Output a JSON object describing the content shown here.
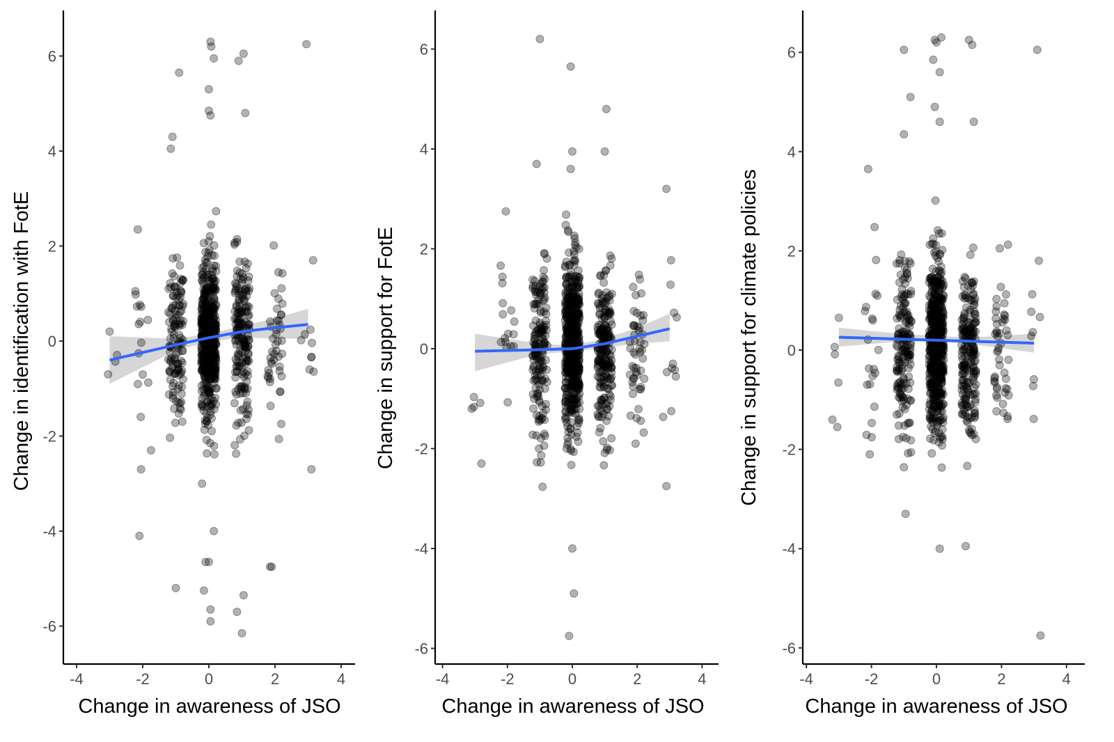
{
  "figure": {
    "point_color": "#000000",
    "point_alpha": 0.3,
    "fit_line_color": "#3366FF",
    "ci_band_color": "#999999",
    "ci_band_alpha": 0.4
  },
  "chart_data": [
    {
      "type": "scatter",
      "title": "",
      "xlabel": "Change in awareness of JSO",
      "ylabel": "Change in identification with FotE",
      "xlim": [
        -4.4,
        4.4
      ],
      "ylim": [
        -6.8,
        6.8
      ],
      "xticks": [
        "-4",
        "-2",
        "0",
        "2",
        "4"
      ],
      "yticks": [
        "-6",
        "-4",
        "-2",
        "0",
        "2",
        "4",
        "6"
      ],
      "grid": false,
      "jitter_columns": [
        {
          "x": -3,
          "n": 2,
          "spread": [
            -0.7,
            0.2
          ]
        },
        {
          "x": -2,
          "n": 14,
          "spread": [
            -4.1,
            2.4
          ]
        },
        {
          "x": -1,
          "n": 130,
          "spread": [
            -5.2,
            5.6
          ]
        },
        {
          "x": 0,
          "n": 520,
          "spread": [
            -5.9,
            6.3
          ]
        },
        {
          "x": 1,
          "n": 190,
          "spread": [
            -6.2,
            6.1
          ]
        },
        {
          "x": 2,
          "n": 45,
          "spread": [
            -4.8,
            3.3
          ]
        },
        {
          "x": 3,
          "n": 8,
          "spread": [
            -2.7,
            6.2
          ]
        }
      ],
      "outliers": [
        {
          "x": 0.05,
          "y": 6.3
        },
        {
          "x": 0.07,
          "y": 6.2
        },
        {
          "x": 0.15,
          "y": 5.95
        },
        {
          "x": -0.9,
          "y": 5.65
        },
        {
          "x": 0.9,
          "y": 5.9
        },
        {
          "x": 1.05,
          "y": 6.05
        },
        {
          "x": 2.95,
          "y": 6.25
        },
        {
          "x": 0.0,
          "y": 5.3
        },
        {
          "x": 0.0,
          "y": 4.85
        },
        {
          "x": 0.05,
          "y": 4.75
        },
        {
          "x": 1.1,
          "y": 4.8
        },
        {
          "x": -1.1,
          "y": 4.3
        },
        {
          "x": -1.15,
          "y": 4.05
        },
        {
          "x": -2.15,
          "y": 2.35
        },
        {
          "x": 3.15,
          "y": 1.7
        },
        {
          "x": -2.1,
          "y": -4.1
        },
        {
          "x": -1.0,
          "y": -5.2
        },
        {
          "x": 1.05,
          "y": -5.35
        },
        {
          "x": 0.05,
          "y": -5.65
        },
        {
          "x": 0.85,
          "y": -5.7
        },
        {
          "x": 0.05,
          "y": -5.9
        },
        {
          "x": 1.0,
          "y": -6.15
        },
        {
          "x": -0.15,
          "y": -5.25
        },
        {
          "x": 1.85,
          "y": -4.75
        },
        {
          "x": 1.9,
          "y": -4.75
        },
        {
          "x": -0.1,
          "y": -4.65
        },
        {
          "x": 0.0,
          "y": -4.65
        },
        {
          "x": 0.15,
          "y": -4.0
        },
        {
          "x": 3.1,
          "y": -2.7
        },
        {
          "x": -3.05,
          "y": -0.7
        },
        {
          "x": -3.0,
          "y": 0.2
        },
        {
          "x": -2.05,
          "y": -2.7
        },
        {
          "x": -1.75,
          "y": -2.3
        }
      ],
      "fit_line": {
        "x": [
          -3,
          -1,
          0,
          1,
          2,
          3
        ],
        "y": [
          -0.4,
          -0.08,
          0.07,
          0.2,
          0.28,
          0.35
        ]
      },
      "ci_band": {
        "x": [
          -3,
          -1,
          0,
          1,
          2,
          3
        ],
        "lower": [
          -0.9,
          -0.2,
          -0.02,
          0.08,
          0.05,
          0.05
        ],
        "upper": [
          0.1,
          0.05,
          0.15,
          0.32,
          0.48,
          0.68
        ]
      }
    },
    {
      "type": "scatter",
      "title": "",
      "xlabel": "Change in awareness of JSO",
      "ylabel": "Change in support for FotE",
      "xlim": [
        -4.4,
        4.4
      ],
      "ylim": [
        -6.5,
        6.8
      ],
      "xticks": [
        "-4",
        "-2",
        "0",
        "2",
        "4"
      ],
      "yticks": [
        "-6",
        "-4",
        "-2",
        "0",
        "2",
        "4",
        "6"
      ],
      "grid": false,
      "jitter_columns": [
        {
          "x": -3,
          "n": 3,
          "spread": [
            -2.3,
            -0.3
          ]
        },
        {
          "x": -2,
          "n": 16,
          "spread": [
            -1.2,
            2.8
          ]
        },
        {
          "x": -1,
          "n": 170,
          "spread": [
            -3.6,
            3.7
          ]
        },
        {
          "x": 0,
          "n": 560,
          "spread": [
            -4.0,
            3.9
          ]
        },
        {
          "x": 1,
          "n": 220,
          "spread": [
            -3.1,
            3.9
          ]
        },
        {
          "x": 2,
          "n": 50,
          "spread": [
            -1.9,
            3.0
          ]
        },
        {
          "x": 3,
          "n": 9,
          "spread": [
            -2.8,
            3.2
          ]
        }
      ],
      "outliers": [
        {
          "x": -1.0,
          "y": 6.2
        },
        {
          "x": -0.05,
          "y": 5.65
        },
        {
          "x": 1.05,
          "y": 4.8
        },
        {
          "x": 0.0,
          "y": 3.95
        },
        {
          "x": 1.0,
          "y": 3.95
        },
        {
          "x": -1.1,
          "y": 3.7
        },
        {
          "x": -0.05,
          "y": 3.6
        },
        {
          "x": 2.9,
          "y": 3.2
        },
        {
          "x": -2.05,
          "y": 2.75
        },
        {
          "x": -3.1,
          "y": -1.2
        },
        {
          "x": -2.8,
          "y": -2.3
        },
        {
          "x": 0.05,
          "y": -4.9
        },
        {
          "x": -0.1,
          "y": -5.75
        },
        {
          "x": 0.0,
          "y": -4.0
        },
        {
          "x": 3.1,
          "y": -0.3
        },
        {
          "x": 3.05,
          "y": -1.25
        },
        {
          "x": 2.9,
          "y": -2.75
        },
        {
          "x": 1.95,
          "y": -1.9
        }
      ],
      "fit_line": {
        "x": [
          -3,
          -1,
          0,
          1,
          2,
          3
        ],
        "y": [
          -0.05,
          -0.02,
          0.0,
          0.1,
          0.25,
          0.4
        ]
      },
      "ci_band": {
        "x": [
          -3,
          -1,
          0,
          1,
          2,
          3
        ],
        "lower": [
          -0.45,
          -0.1,
          -0.06,
          0.02,
          0.1,
          0.15
        ],
        "upper": [
          0.3,
          0.1,
          0.07,
          0.2,
          0.42,
          0.7
        ]
      }
    },
    {
      "type": "scatter",
      "title": "",
      "xlabel": "Change in awareness of JSO",
      "ylabel": "Change in support for climate policies",
      "xlim": [
        -4.4,
        4.4
      ],
      "ylim": [
        -6.5,
        6.8
      ],
      "xticks": [
        "-4",
        "-2",
        "0",
        "2",
        "4"
      ],
      "yticks": [
        "-6",
        "-4",
        "-2",
        "0",
        "2",
        "4",
        "6"
      ],
      "grid": false,
      "jitter_columns": [
        {
          "x": -3,
          "n": 3,
          "spread": [
            -1.5,
            0.6
          ]
        },
        {
          "x": -2,
          "n": 20,
          "spread": [
            -2.1,
            3.7
          ]
        },
        {
          "x": -1,
          "n": 170,
          "spread": [
            -3.3,
            6.1
          ]
        },
        {
          "x": 0,
          "n": 560,
          "spread": [
            -4.0,
            6.3
          ]
        },
        {
          "x": 1,
          "n": 210,
          "spread": [
            -3.9,
            6.2
          ]
        },
        {
          "x": 2,
          "n": 48,
          "spread": [
            -2.7,
            3.1
          ]
        },
        {
          "x": 3,
          "n": 8,
          "spread": [
            -5.7,
            6.1
          ]
        }
      ],
      "outliers": [
        {
          "x": 0.0,
          "y": 6.2
        },
        {
          "x": 0.15,
          "y": 6.3
        },
        {
          "x": -0.05,
          "y": 6.25
        },
        {
          "x": 1.0,
          "y": 6.25
        },
        {
          "x": 1.1,
          "y": 6.15
        },
        {
          "x": -1.0,
          "y": 6.05
        },
        {
          "x": 3.1,
          "y": 6.05
        },
        {
          "x": -0.1,
          "y": 5.85
        },
        {
          "x": 0.1,
          "y": 5.6
        },
        {
          "x": -0.8,
          "y": 5.1
        },
        {
          "x": -0.05,
          "y": 4.9
        },
        {
          "x": 0.1,
          "y": 4.6
        },
        {
          "x": 1.15,
          "y": 4.6
        },
        {
          "x": -1.0,
          "y": 4.35
        },
        {
          "x": -2.1,
          "y": 3.65
        },
        {
          "x": 3.15,
          "y": 1.8
        },
        {
          "x": -3.2,
          "y": -1.4
        },
        {
          "x": -3.05,
          "y": -1.55
        },
        {
          "x": -2.05,
          "y": -2.1
        },
        {
          "x": -0.95,
          "y": -3.3
        },
        {
          "x": 0.1,
          "y": -4.0
        },
        {
          "x": 0.9,
          "y": -3.95
        },
        {
          "x": 3.2,
          "y": -5.75
        },
        {
          "x": -3.0,
          "y": 0.65
        }
      ],
      "fit_line": {
        "x": [
          -3,
          3
        ],
        "y": [
          0.26,
          0.14
        ]
      },
      "ci_band": {
        "x": [
          -3,
          -1,
          0,
          1,
          3
        ],
        "lower": [
          0.07,
          0.18,
          0.17,
          0.13,
          -0.05
        ],
        "upper": [
          0.45,
          0.32,
          0.29,
          0.25,
          0.33
        ]
      }
    }
  ]
}
